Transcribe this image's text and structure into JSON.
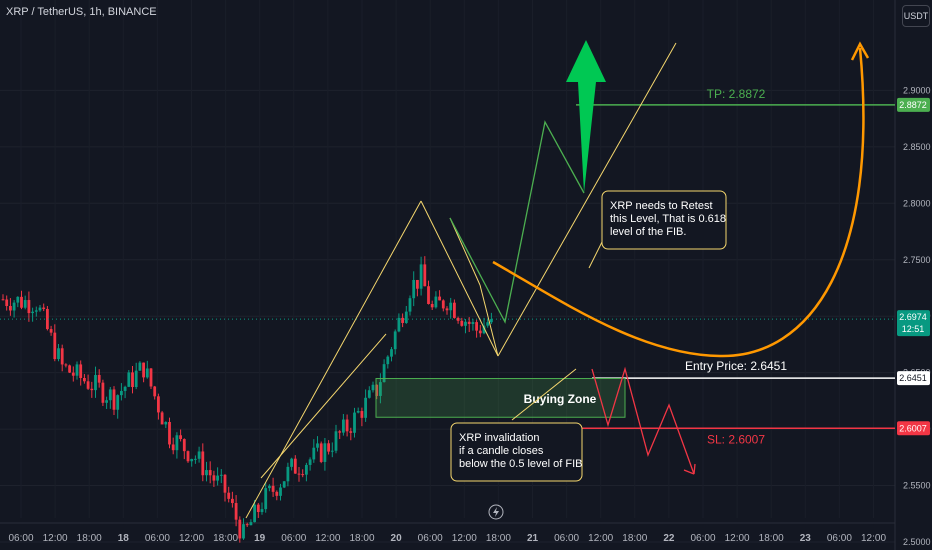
{
  "header": {
    "symbol_title": "XRP / TetherUS, 1h, BINANCE",
    "currency_button": "USDT"
  },
  "chart_data": {
    "type": "candlestick",
    "price_axis": {
      "min": 2.47,
      "max": 2.905,
      "ticks": [
        2.9,
        2.85,
        2.8,
        2.75,
        2.7,
        2.65,
        2.6,
        2.55,
        2.5
      ],
      "tick_labels": [
        "2.9000",
        "2.8500",
        "2.8000",
        "2.7500",
        "2.7000",
        "2.6500",
        "2.6000",
        "2.5500",
        "2.5000"
      ]
    },
    "time_axis": {
      "labels": [
        "06:00",
        "12:00",
        "18:00",
        "18",
        "06:00",
        "12:00",
        "18:00",
        "19",
        "06:00",
        "12:00",
        "18:00",
        "20",
        "06:00",
        "12:00",
        "18:00",
        "21",
        "06:00",
        "12:00",
        "18:00",
        "22",
        "06:00",
        "12:00",
        "18:00",
        "23",
        "06:00",
        "12:00"
      ]
    },
    "price_labels": [
      {
        "price": 2.8872,
        "label": "2.8872",
        "color": "#4caf50"
      },
      {
        "price": 2.6974,
        "label": "2.6974",
        "sub": "12:51",
        "color": "#089981"
      },
      {
        "price": 2.6451,
        "label": "2.6451",
        "color": "#ffffff"
      },
      {
        "price": 2.6007,
        "label": "2.6007",
        "color": "#f23645"
      }
    ],
    "current_price": 2.6974,
    "levels": [
      {
        "name": "take-profit",
        "price": 2.8872,
        "label": "TP: 2.8872",
        "color": "#4caf50"
      },
      {
        "name": "entry",
        "price": 2.6451,
        "label": "Entry Price: 2.6451",
        "color": "#ffffff"
      },
      {
        "name": "stop-loss",
        "price": 2.6007,
        "label": "SL: 2.6007",
        "color": "#f23645"
      }
    ],
    "zone": {
      "label": "Buying Zone",
      "top": 2.6448,
      "bottom": 2.6105
    },
    "annotations": [
      {
        "name": "retest-note",
        "lines": [
          "XRP needs to Retest",
          "this Level, That is 0.618",
          "level of the FIB."
        ]
      },
      {
        "name": "invalidation-note",
        "lines": [
          "XRP invalidation",
          "if a candle closes",
          "below the 0.5 level of FIB"
        ]
      }
    ],
    "colors": {
      "up": "#089981",
      "down": "#f23645",
      "channel": "#f5d76e",
      "projection": "#ff9800"
    }
  }
}
